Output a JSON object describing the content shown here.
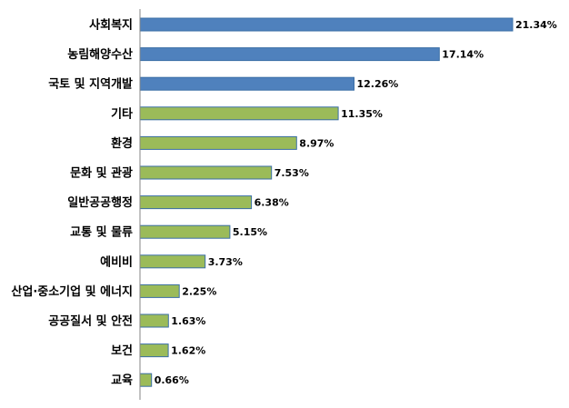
{
  "chart_data": {
    "type": "bar",
    "orientation": "horizontal",
    "title": "",
    "xlabel": "",
    "ylabel": "",
    "grid": false,
    "legend": "none",
    "xlim": [
      0,
      21.34
    ],
    "categories": [
      "사회복지",
      "농림해양수산",
      "국토 및 지역개발",
      "기타",
      "환경",
      "문화 및 관광",
      "일반공공행정",
      "교통 및 물류",
      "예비비",
      "산업·중소기업 및 에너지",
      "공공질서 및 안전",
      "보건",
      "교육"
    ],
    "values": [
      21.34,
      17.14,
      12.26,
      11.35,
      8.97,
      7.53,
      6.38,
      5.15,
      3.73,
      2.25,
      1.63,
      1.62,
      0.66
    ],
    "value_labels": [
      "21.34%",
      "17.14%",
      "12.26%",
      "11.35%",
      "8.97%",
      "7.53%",
      "6.38%",
      "5.15%",
      "3.73%",
      "2.25%",
      "1.63%",
      "1.62%",
      "0.66%"
    ],
    "bar_colors": [
      "#4f81bd",
      "#4f81bd",
      "#4f81bd",
      "#9bbb59",
      "#9bbb59",
      "#9bbb59",
      "#9bbb59",
      "#9bbb59",
      "#9bbb59",
      "#9bbb59",
      "#9bbb59",
      "#9bbb59",
      "#9bbb59"
    ],
    "bar_border_color": "#3a6ea5",
    "axis_color": "#868686"
  }
}
